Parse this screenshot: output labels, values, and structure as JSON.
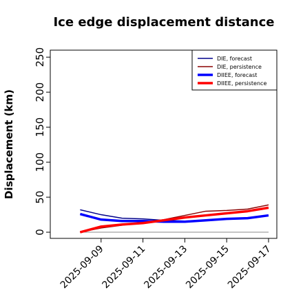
{
  "chart_data": {
    "type": "line",
    "title": "Ice edge displacement distance",
    "y_label": "Displacement (km)",
    "x": [
      "2025-09-08",
      "2025-09-09",
      "2025-09-10",
      "2025-09-11",
      "2025-09-12",
      "2025-09-13",
      "2025-09-14",
      "2025-09-15",
      "2025-09-16",
      "2025-09-17"
    ],
    "series": [
      {
        "name": "DIE, forecast",
        "color": "#00008b",
        "width": 1.5,
        "values": [
          32,
          25,
          20,
          19,
          17,
          16,
          17,
          19,
          20,
          24
        ]
      },
      {
        "name": "DIE, persistence",
        "color": "#8b0000",
        "width": 1.5,
        "values": [
          0,
          6,
          10,
          14,
          18,
          24,
          30,
          31,
          33,
          39
        ]
      },
      {
        "name": "DIIEE, forecast",
        "color": "#0000ff",
        "width": 3.5,
        "values": [
          26,
          18,
          16,
          16,
          15,
          15,
          17,
          19,
          20,
          24
        ]
      },
      {
        "name": "DIIEE, persistence",
        "color": "#ff0000",
        "width": 3.5,
        "values": [
          0,
          8,
          11,
          13,
          17,
          21,
          24,
          27,
          30,
          35
        ]
      }
    ],
    "xlim": [
      "2025-09-06T13:45",
      "2025-09-17T09:30"
    ],
    "xticks": [
      "2025-09-09",
      "2025-09-11",
      "2025-09-13",
      "2025-09-15",
      "2025-09-17"
    ],
    "xtick_colors": [
      "#228b22",
      "#000000",
      "#000000",
      "#000000",
      "#000000"
    ],
    "ylim": [
      -8.8,
      260
    ],
    "yticks": [
      0,
      50,
      100,
      150,
      200,
      250
    ],
    "legend": "upper right"
  }
}
